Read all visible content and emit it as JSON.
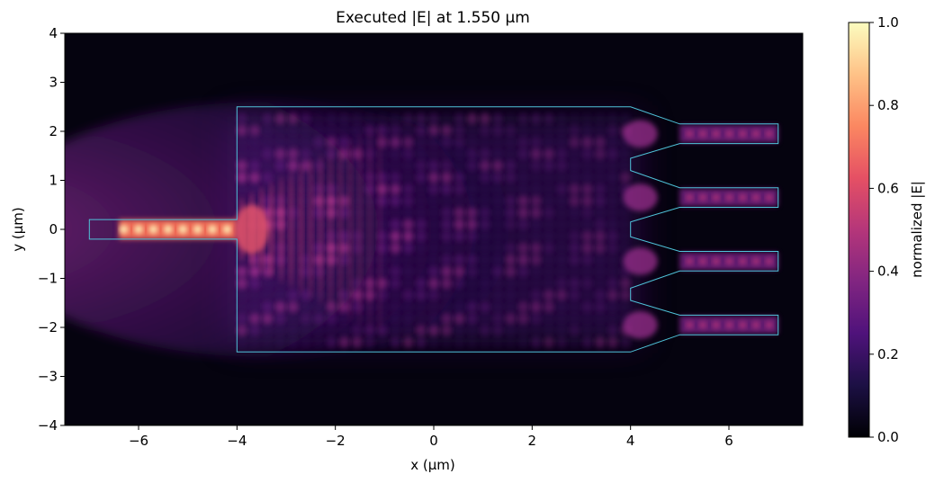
{
  "chart_data": {
    "type": "heatmap",
    "title": "Executed |E| at 1.550 µm",
    "xlabel": "x (µm)",
    "ylabel": "y (µm)",
    "xlim": [
      -7.5,
      7.5
    ],
    "ylim": [
      -4,
      4
    ],
    "x_ticks": [
      -6,
      -4,
      -2,
      0,
      2,
      4,
      6
    ],
    "x_tick_labels": [
      "−6",
      "−4",
      "−2",
      "0",
      "2",
      "4",
      "6"
    ],
    "y_ticks": [
      -4,
      -3,
      -2,
      -1,
      0,
      1,
      2,
      3,
      4
    ],
    "y_tick_labels": [
      "−4",
      "−3",
      "−2",
      "−1",
      "0",
      "1",
      "2",
      "3",
      "4"
    ],
    "colormap": "magma",
    "colorbar": {
      "label": "normalized |E|",
      "range": [
        0,
        1
      ],
      "ticks": [
        0.0,
        0.2,
        0.4,
        0.6,
        0.8,
        1.0
      ],
      "tick_labels": [
        "0.0",
        "0.2",
        "0.4",
        "0.6",
        "0.8",
        "1.0"
      ]
    },
    "outline_color": "#4fc3d9",
    "structure_outline_um": [
      [
        -7.0,
        0.2
      ],
      [
        -4.0,
        0.2
      ],
      [
        -4.0,
        2.5
      ],
      [
        4.0,
        2.5
      ],
      [
        5.0,
        2.15
      ],
      [
        7.0,
        2.15
      ],
      [
        7.0,
        1.75
      ],
      [
        5.0,
        1.75
      ],
      [
        4.0,
        1.45
      ],
      [
        4.0,
        1.2
      ],
      [
        5.0,
        0.85
      ],
      [
        7.0,
        0.85
      ],
      [
        7.0,
        0.45
      ],
      [
        5.0,
        0.45
      ],
      [
        4.0,
        0.15
      ],
      [
        4.0,
        -0.15
      ],
      [
        5.0,
        -0.45
      ],
      [
        7.0,
        -0.45
      ],
      [
        7.0,
        -0.85
      ],
      [
        5.0,
        -0.85
      ],
      [
        4.0,
        -1.2
      ],
      [
        4.0,
        -1.45
      ],
      [
        5.0,
        -1.75
      ],
      [
        7.0,
        -1.75
      ],
      [
        7.0,
        -2.15
      ],
      [
        5.0,
        -2.15
      ],
      [
        4.0,
        -2.5
      ],
      [
        -4.0,
        -2.5
      ],
      [
        -4.0,
        -0.2
      ],
      [
        -7.0,
        -0.2
      ]
    ],
    "output_waveguide_centers_um": [
      1.95,
      0.65,
      -0.65,
      -1.95
    ]
  }
}
